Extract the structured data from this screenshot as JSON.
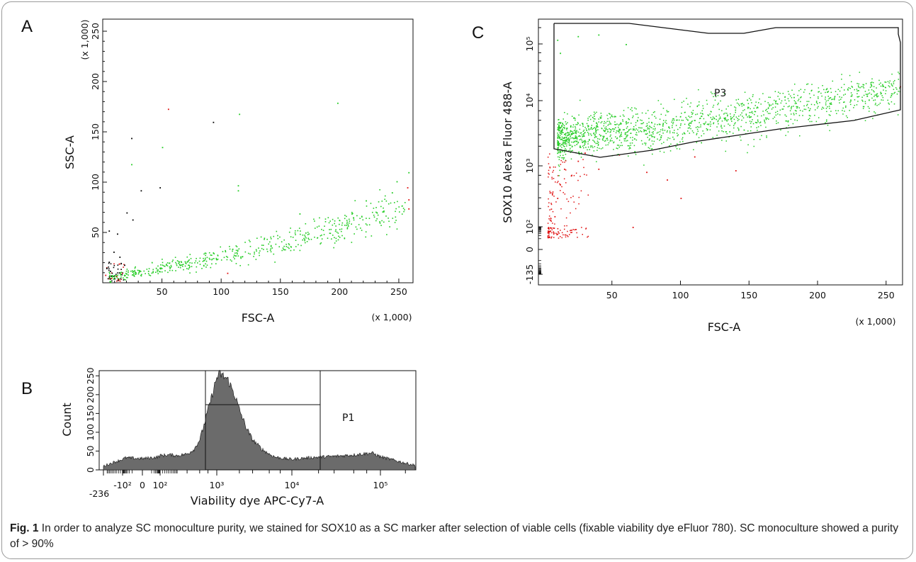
{
  "caption": {
    "label": "Fig. 1",
    "text": " In order to analyze SC monoculture purity, we stained for SOX10 as a SC marker after selection of viable cells (fixable viability dye eFluor 780). SC monoculture showed a purity of > 90%"
  },
  "colors": {
    "gated": "#22cc22",
    "ungated": "#e01010",
    "other": "#000000",
    "histogram_fill": "#6b6b6b"
  },
  "chart_data": [
    {
      "panel": "A",
      "type": "scatter",
      "xlabel": "FSC-A",
      "ylabel": "SSC-A",
      "x_multiplier": "(x 1,000)",
      "y_multiplier": "(x 1,000)",
      "xlim": [
        0,
        262
      ],
      "ylim": [
        0,
        262
      ],
      "xticks": [
        50,
        100,
        150,
        200,
        250
      ],
      "yticks": [
        50,
        100,
        150,
        200,
        250
      ],
      "trend": {
        "x": [
          5,
          50,
          100,
          150,
          200,
          250
        ],
        "y": [
          5,
          15,
          26,
          40,
          55,
          75
        ]
      },
      "series": [
        {
          "color": "#22cc22",
          "points": [
            [
              24,
              118
            ],
            [
              50,
              135
            ],
            [
              115,
              168
            ],
            [
              198,
              179
            ],
            [
              114,
              97
            ],
            [
              114,
              92
            ],
            [
              258,
              110
            ],
            [
              244,
              90
            ],
            [
              222,
              82
            ],
            [
              210,
              69
            ],
            [
              236,
              71
            ],
            [
              166,
              69
            ],
            [
              248,
              101
            ]
          ]
        },
        {
          "color": "#000000",
          "points": [
            [
              5,
              52
            ],
            [
              12,
              49
            ],
            [
              20,
              70
            ],
            [
              25,
              63
            ],
            [
              24,
              144
            ],
            [
              32,
              92
            ],
            [
              48,
              95
            ],
            [
              93,
              160
            ],
            [
              5,
              21
            ],
            [
              9,
              31
            ],
            [
              14,
              26
            ],
            [
              18,
              18
            ],
            [
              6,
              12
            ],
            [
              3,
              15
            ]
          ]
        },
        {
          "color": "#e01010",
          "points": [
            [
              55,
              173
            ],
            [
              257,
              95
            ],
            [
              258,
              83
            ],
            [
              258,
              74
            ],
            [
              2,
              8
            ],
            [
              7,
              5
            ],
            [
              105,
              10
            ]
          ]
        }
      ]
    },
    {
      "panel": "B",
      "type": "area",
      "xlabel": "Viability dye APC-Cy7-A",
      "ylabel": "Count",
      "xscale": "biexponential",
      "ylim": [
        0,
        260
      ],
      "xtick_labels": [
        "-236",
        "-10²",
        "0",
        "10²",
        "10³",
        "10⁴",
        "10⁵"
      ],
      "ytick_labels": [
        "0",
        "50",
        "100",
        "150",
        "200",
        "250"
      ],
      "gate": {
        "name": "P1"
      },
      "x": [
        -236,
        -150,
        -100,
        -50,
        0,
        50,
        100,
        150,
        200,
        300,
        400,
        500,
        600,
        700,
        800,
        900,
        1000,
        1100,
        1200,
        1400,
        1600,
        1800,
        2000,
        2500,
        3000,
        4000,
        5000,
        6000,
        8000,
        10000,
        12000,
        15000,
        20000,
        30000,
        50000,
        80000,
        100000,
        150000,
        200000,
        262000
      ],
      "y": [
        10,
        20,
        28,
        32,
        30,
        34,
        38,
        40,
        38,
        42,
        55,
        80,
        120,
        160,
        190,
        220,
        245,
        255,
        250,
        240,
        215,
        190,
        160,
        110,
        80,
        55,
        42,
        34,
        30,
        28,
        30,
        32,
        34,
        36,
        40,
        45,
        35,
        25,
        18,
        12
      ]
    },
    {
      "panel": "C",
      "type": "scatter",
      "xlabel": "FSC-A",
      "ylabel": "SOX10 Alexa Fluor 488-A",
      "x_multiplier": "(x 1,000)",
      "yscale": "biexponential",
      "xlim": [
        0,
        262
      ],
      "xticks": [
        50,
        100,
        150,
        200,
        250
      ],
      "ytick_labels": [
        "-135",
        "0",
        "10²",
        "10³",
        "10⁴",
        "10⁵"
      ],
      "gate": {
        "name": "P3"
      },
      "green_trend": {
        "x": [
          8,
          25,
          50,
          75,
          100,
          150,
          200,
          250
        ],
        "y": [
          2500,
          3000,
          3200,
          3400,
          4200,
          6000,
          9000,
          14000
        ]
      },
      "series": [
        {
          "color": "#22cc22",
          "points": [
            [
              10,
              120000
            ],
            [
              25,
              140000
            ],
            [
              60,
              100000
            ],
            [
              12,
              70000
            ],
            [
              40,
              150000
            ]
          ]
        },
        {
          "color": "#e01010",
          "points": [
            [
              5,
              90
            ],
            [
              8,
              150
            ],
            [
              10,
              300
            ],
            [
              12,
              500
            ],
            [
              15,
              900
            ],
            [
              20,
              700
            ],
            [
              25,
              1200
            ],
            [
              30,
              1600
            ],
            [
              40,
              900
            ],
            [
              55,
              1500
            ],
            [
              65,
              100
            ],
            [
              75,
              800
            ],
            [
              90,
              600
            ],
            [
              100,
              300
            ],
            [
              110,
              1400
            ],
            [
              140,
              850
            ],
            [
              260,
              18000
            ]
          ]
        }
      ]
    }
  ]
}
